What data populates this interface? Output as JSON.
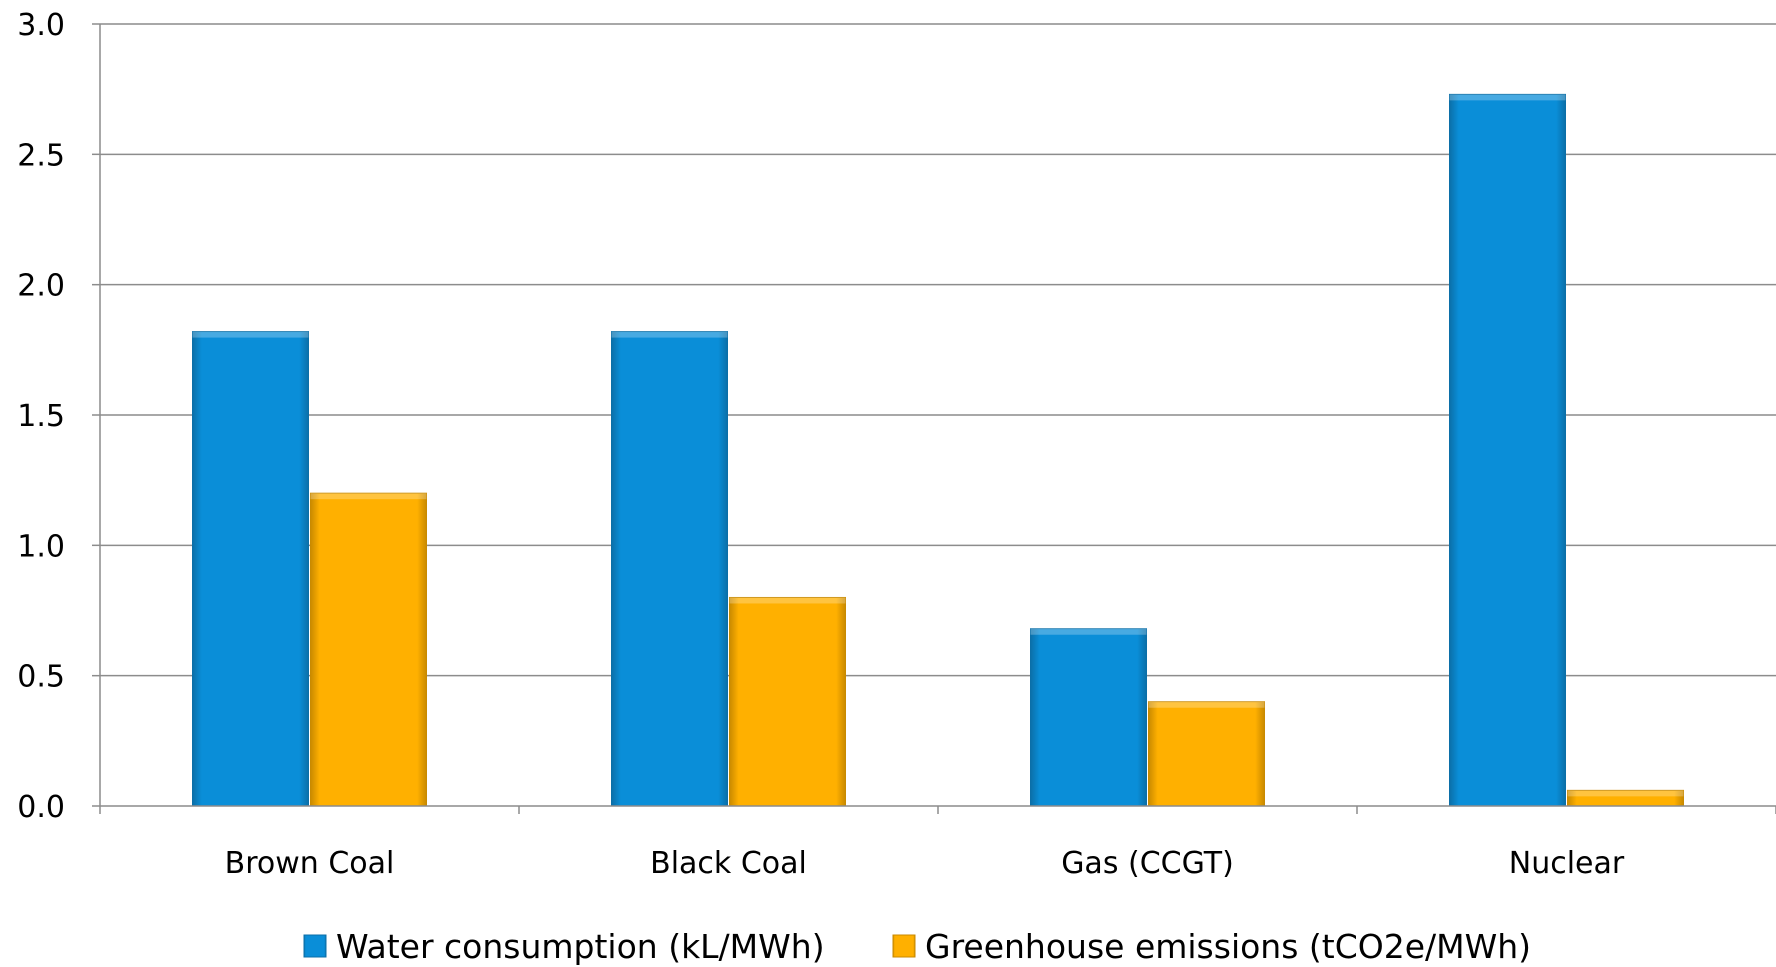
{
  "chart_data": {
    "type": "bar",
    "categories": [
      "Brown Coal",
      "Black Coal",
      "Gas (CCGT)",
      "Nuclear"
    ],
    "series": [
      {
        "name": "Water consumption (kL/MWh)",
        "values": [
          1.82,
          1.82,
          0.68,
          2.73
        ],
        "color": "#0a8ed8",
        "edge_color": "#0b6fa8"
      },
      {
        "name": "Greenhouse emissions (tCO2e/MWh)",
        "values": [
          1.2,
          0.8,
          0.4,
          0.06
        ],
        "color": "#ffb000",
        "edge_color": "#c98a00"
      }
    ],
    "y_ticks": [
      "0.0",
      "0.5",
      "1.0",
      "1.5",
      "2.0",
      "2.5",
      "3.0"
    ],
    "ylim": [
      0,
      3
    ],
    "grid": true,
    "legend_position": "bottom"
  }
}
